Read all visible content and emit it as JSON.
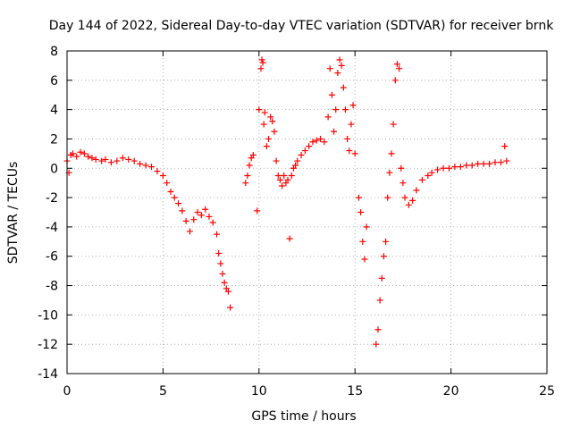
{
  "chart_data": {
    "type": "scatter",
    "title": "Day 144 of 2022, Sidereal Day-to-day VTEC variation (SDTVAR) for receiver brnk",
    "xlabel": "GPS time / hours",
    "ylabel": "SDTVAR / TECUs",
    "xlim": [
      0,
      25
    ],
    "ylim": [
      -14,
      8
    ],
    "xticks": [
      0,
      5,
      10,
      15,
      20,
      25
    ],
    "yticks": [
      -14,
      -12,
      -10,
      -8,
      -6,
      -4,
      -2,
      0,
      2,
      4,
      6,
      8
    ],
    "xtick_labels": [
      "0",
      "5",
      "10",
      "15",
      "20",
      "25"
    ],
    "ytick_labels": [
      "-14",
      "-12",
      "-10",
      "-8",
      "-6",
      "-4",
      "-2",
      "0",
      "2",
      "4",
      "6",
      "8"
    ],
    "grid": true,
    "marker": "+",
    "marker_color": "#ff0000",
    "series": [
      {
        "name": "SDTVAR",
        "x": [
          0.0,
          0.1,
          0.2,
          0.3,
          0.5,
          0.7,
          0.9,
          1.1,
          1.3,
          1.5,
          1.8,
          2.0,
          2.3,
          2.6,
          2.9,
          3.2,
          3.5,
          3.8,
          4.1,
          4.4,
          4.7,
          5.0,
          5.2,
          5.4,
          5.6,
          5.8,
          6.0,
          6.2,
          6.4,
          6.6,
          6.8,
          7.0,
          7.2,
          7.4,
          7.6,
          7.8,
          7.9,
          8.0,
          8.1,
          8.2,
          8.3,
          8.4,
          8.5,
          9.3,
          9.4,
          9.5,
          9.6,
          9.7,
          9.9,
          10.0,
          10.1,
          10.15,
          10.2,
          10.25,
          10.3,
          10.4,
          10.5,
          10.6,
          10.7,
          10.8,
          10.9,
          11.0,
          11.1,
          11.2,
          11.3,
          11.4,
          11.5,
          11.6,
          11.7,
          11.8,
          11.9,
          12.0,
          12.2,
          12.4,
          12.6,
          12.8,
          13.0,
          13.2,
          13.4,
          13.6,
          13.7,
          13.8,
          13.9,
          14.0,
          14.1,
          14.2,
          14.3,
          14.4,
          14.5,
          14.6,
          14.7,
          14.8,
          14.9,
          15.0,
          15.2,
          15.3,
          15.4,
          15.5,
          15.6,
          16.1,
          16.2,
          16.3,
          16.4,
          16.5,
          16.6,
          16.7,
          16.8,
          16.9,
          17.0,
          17.1,
          17.2,
          17.3,
          17.4,
          17.5,
          17.6,
          17.8,
          18.0,
          18.2,
          18.5,
          18.8,
          19.0,
          19.3,
          19.6,
          19.9,
          20.2,
          20.5,
          20.8,
          21.1,
          21.4,
          21.7,
          22.0,
          22.3,
          22.6,
          22.8,
          22.9
        ],
        "y": [
          0.5,
          -0.3,
          0.9,
          1.0,
          0.8,
          1.1,
          1.0,
          0.8,
          0.7,
          0.6,
          0.5,
          0.6,
          0.4,
          0.5,
          0.7,
          0.6,
          0.5,
          0.3,
          0.2,
          0.1,
          -0.2,
          -0.5,
          -1.0,
          -1.6,
          -2.0,
          -2.4,
          -2.9,
          -3.6,
          -4.3,
          -3.5,
          -3.0,
          -3.2,
          -2.8,
          -3.3,
          -3.7,
          -4.5,
          -5.8,
          -6.5,
          -7.2,
          -7.8,
          -8.2,
          -8.4,
          -9.5,
          -1.0,
          -0.5,
          0.2,
          0.7,
          0.9,
          -2.9,
          4.0,
          6.8,
          7.4,
          7.2,
          3.0,
          3.8,
          1.5,
          2.0,
          3.5,
          3.2,
          2.5,
          0.5,
          -0.5,
          -0.8,
          -1.2,
          -0.5,
          -1.0,
          -0.8,
          -4.8,
          -0.5,
          0.0,
          0.2,
          0.5,
          0.9,
          1.2,
          1.5,
          1.8,
          1.9,
          2.0,
          1.8,
          3.5,
          6.8,
          5.0,
          2.5,
          4.0,
          6.5,
          7.4,
          7.0,
          5.5,
          4.0,
          2.0,
          1.2,
          3.0,
          4.3,
          1.0,
          -2.0,
          -3.0,
          -5.0,
          -6.2,
          -4.0,
          -12.0,
          -11.0,
          -9.0,
          -7.5,
          -6.0,
          -5.0,
          -2.0,
          -0.3,
          1.0,
          3.0,
          6.0,
          7.1,
          6.8,
          0.0,
          -1.0,
          -2.0,
          -2.5,
          -2.2,
          -1.5,
          -0.8,
          -0.5,
          -0.3,
          -0.1,
          0.0,
          0.0,
          0.1,
          0.1,
          0.2,
          0.2,
          0.3,
          0.3,
          0.3,
          0.4,
          0.4,
          1.5,
          0.5
        ]
      }
    ]
  }
}
